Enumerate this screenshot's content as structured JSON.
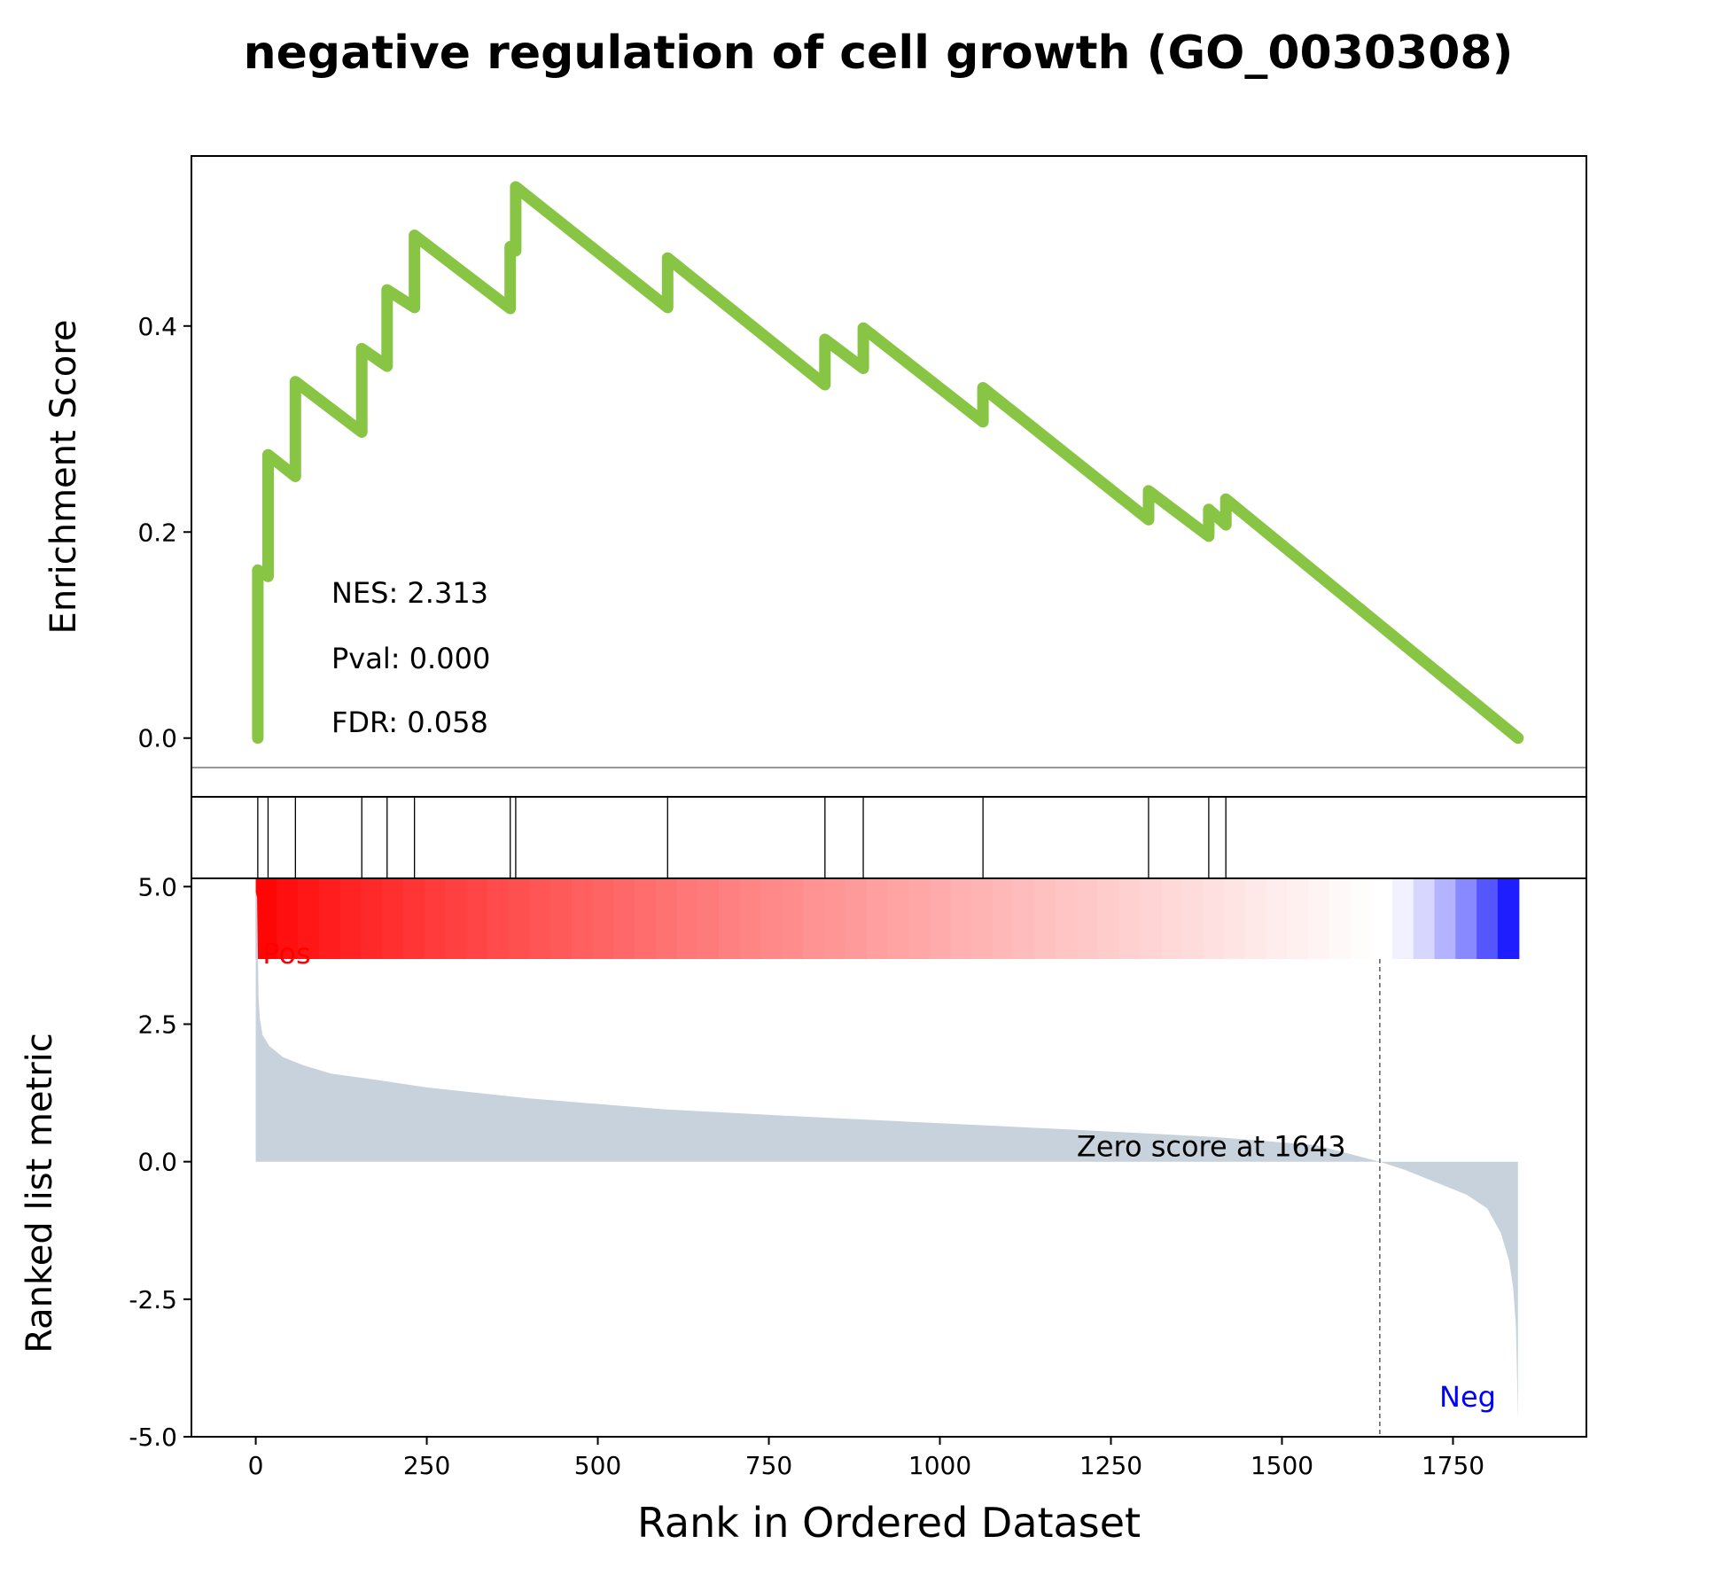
{
  "title": "negative regulation of cell growth (GO_0030308)",
  "chart_data": {
    "type": "line",
    "title": "negative regulation of cell growth (GO_0030308)",
    "xlabel": "Rank in Ordered Dataset",
    "xlim": [
      -94,
      1945
    ],
    "xticks": [
      0,
      250,
      500,
      750,
      1000,
      1250,
      1500,
      1750
    ],
    "xtick_labels": [
      "0",
      "250",
      "500",
      "750",
      "1000",
      "1250",
      "1500",
      "1750"
    ],
    "total_genes": 1846,
    "enrichment": {
      "ylabel": "Enrichment Score",
      "ylim": [
        -0.057,
        0.565
      ],
      "yticks": [
        0.0,
        0.2,
        0.4
      ],
      "ytick_labels": [
        "0.0",
        "0.2",
        "0.4"
      ],
      "color": "#88c544",
      "hit_ranks": [
        3,
        18,
        58,
        155,
        192,
        232,
        372,
        380,
        602,
        832,
        888,
        1063,
        1305,
        1393,
        1418
      ],
      "peaks": [
        0.163,
        0.275,
        0.346,
        0.378,
        0.435,
        0.488,
        0.477,
        0.535,
        0.466,
        0.387,
        0.398,
        0.34,
        0.24,
        0.222,
        0.232
      ],
      "troughs": [
        0.0,
        0.157,
        0.254,
        0.297,
        0.361,
        0.418,
        0.417,
        0.473,
        0.418,
        0.343,
        0.359,
        0.307,
        0.212,
        0.196,
        0.207
      ],
      "end_rank": 1845,
      "end_value": 0.0
    },
    "stats": {
      "nes": "NES: 2.313",
      "pval": "Pval: 0.000",
      "fdr": "FDR: 0.058"
    },
    "ranked_metric": {
      "ylabel": "Ranked list metric",
      "ylim": [
        -5.0,
        5.15
      ],
      "yticks": [
        5.0,
        2.5,
        0.0,
        -2.5,
        -5.0
      ],
      "ytick_labels": [
        "5.0",
        "2.5",
        "0.0",
        "-2.5",
        "-5.0"
      ],
      "fill_color": "#c8d2dc",
      "profile": [
        [
          0,
          4.9
        ],
        [
          2,
          4.8
        ],
        [
          4,
          3.0
        ],
        [
          6,
          2.6
        ],
        [
          10,
          2.3
        ],
        [
          20,
          2.1
        ],
        [
          40,
          1.9
        ],
        [
          70,
          1.75
        ],
        [
          110,
          1.6
        ],
        [
          170,
          1.5
        ],
        [
          250,
          1.35
        ],
        [
          400,
          1.15
        ],
        [
          600,
          0.95
        ],
        [
          800,
          0.82
        ],
        [
          1000,
          0.7
        ],
        [
          1200,
          0.58
        ],
        [
          1400,
          0.45
        ],
        [
          1550,
          0.3
        ],
        [
          1643,
          0.0
        ],
        [
          1680,
          -0.15
        ],
        [
          1720,
          -0.35
        ],
        [
          1770,
          -0.6
        ],
        [
          1800,
          -0.85
        ],
        [
          1820,
          -1.3
        ],
        [
          1832,
          -1.8
        ],
        [
          1838,
          -2.3
        ],
        [
          1842,
          -3.0
        ],
        [
          1845,
          -4.7
        ]
      ],
      "zero_score_rank": 1643,
      "zero_label": "Zero score at 1643",
      "pos_label": "Pos",
      "neg_label": "Neg",
      "pos_color": "#ff0000",
      "neg_color": "#0000ff"
    },
    "rank_colorbar": {
      "pos_color": "#ff0000",
      "neg_color": "#0000ff",
      "zero_rank": 1643
    }
  }
}
